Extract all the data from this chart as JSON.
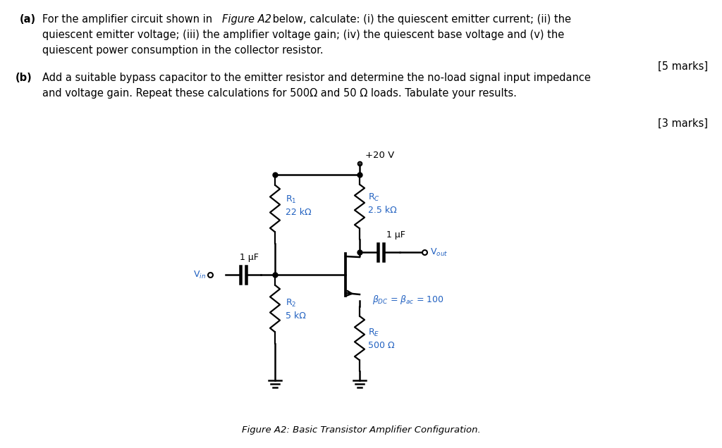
{
  "bg_color": "#ffffff",
  "text_color": "#000000",
  "line_color": "#000000",
  "blue_color": "#2060c0",
  "fig_fontsize": 10.5,
  "circuit_line_color": "#000000",
  "label_color": "#2060c0",
  "text_lines_a": [
    "For the amplifier circuit shown in Figure A2 below, calculate: (i) the quiescent emitter current; (ii) the",
    "quiescent emitter voltage; (iii) the amplifier voltage gain; (iv) the quiescent base voltage and (v) the",
    "quiescent power consumption in the collector resistor."
  ],
  "text_lines_b": [
    "Add a suitable bypass capacitor to the emitter resistor and determine the no-load signal input impedance",
    "and voltage gain. Repeat these calculations for 500Ω and 50 Ω loads. Tabulate your results."
  ],
  "marks_a": "[5 marks]",
  "marks_b": "[3 marks]",
  "caption": "Figure A2: Basic Transistor Amplifier Configuration."
}
